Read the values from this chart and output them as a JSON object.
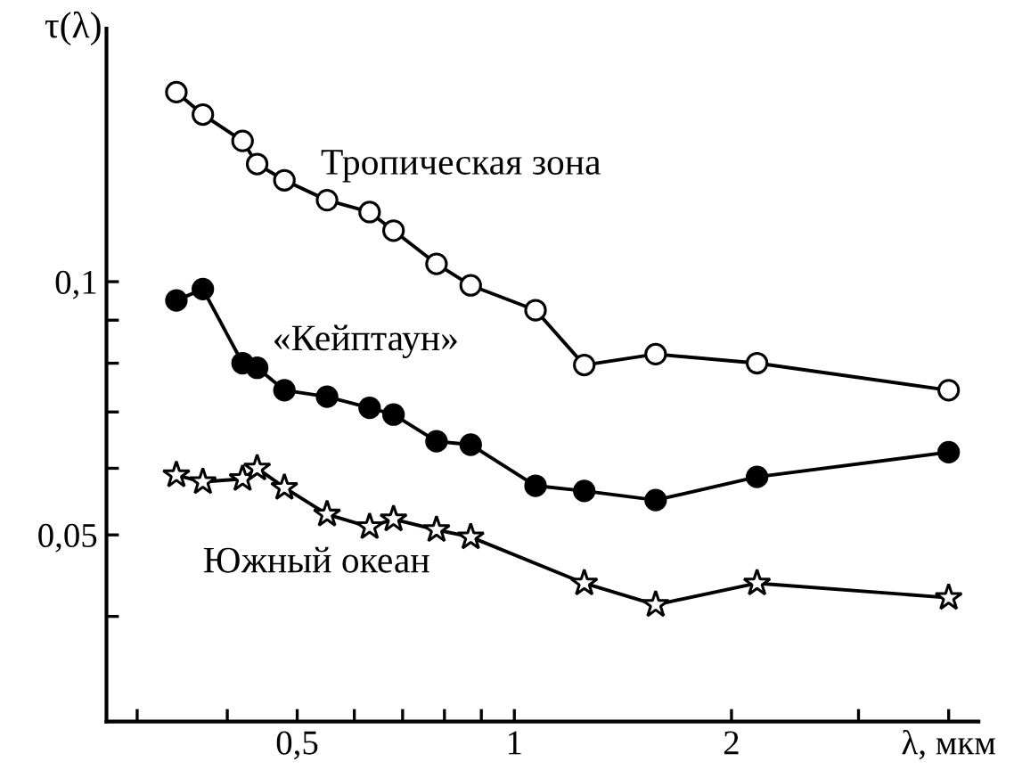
{
  "chart_data": {
    "type": "line",
    "ylabel": "τ(λ)",
    "log": "xy",
    "xlim": [
      0.272,
      4.4
    ],
    "ylim": [
      0.03,
      0.2
    ],
    "xticks": [
      {
        "value": 0.3,
        "label": null
      },
      {
        "value": 0.4,
        "label": null
      },
      {
        "value": 0.5,
        "label": "0,5"
      },
      {
        "value": 0.6,
        "label": null
      },
      {
        "value": 0.7,
        "label": null
      },
      {
        "value": 0.8,
        "label": null
      },
      {
        "value": 0.9,
        "label": null
      },
      {
        "value": 1,
        "label": "1"
      },
      {
        "value": 2,
        "label": "2"
      },
      {
        "value": 3,
        "label": null
      },
      {
        "value": 4,
        "label": "λ, мкм"
      }
    ],
    "yticks": [
      {
        "value": 0.04,
        "label": null
      },
      {
        "value": 0.05,
        "label": "0,05"
      },
      {
        "value": 0.06,
        "label": null
      },
      {
        "value": 0.07,
        "label": null
      },
      {
        "value": 0.08,
        "label": null
      },
      {
        "value": 0.09,
        "label": null
      },
      {
        "value": 0.1,
        "label": "0,1"
      }
    ],
    "grid": false,
    "legend": false,
    "line_style": "solid",
    "series": [
      {
        "name": "Тропическая зона",
        "color": "#ffffff",
        "marker": "circle",
        "x": [
          0.34,
          0.37,
          0.42,
          0.44,
          0.48,
          0.55,
          0.63,
          0.68,
          0.78,
          0.87,
          1.07,
          1.25,
          1.57,
          2.17,
          4.0
        ],
        "values": [
          0.168,
          0.158,
          0.147,
          0.138,
          0.132,
          0.125,
          0.121,
          0.115,
          0.105,
          0.099,
          0.0925,
          0.0796,
          0.082,
          0.08,
          0.0743
        ]
      },
      {
        "name": "«Кейптаун»",
        "color": "#000000",
        "marker": "circle",
        "x": [
          0.34,
          0.37,
          0.42,
          0.44,
          0.48,
          0.55,
          0.63,
          0.68,
          0.78,
          0.87,
          1.07,
          1.25,
          1.57,
          2.17,
          4.0
        ],
        "values": [
          0.095,
          0.098,
          0.08,
          0.079,
          0.0743,
          0.073,
          0.0708,
          0.0695,
          0.0646,
          0.064,
          0.0572,
          0.0564,
          0.055,
          0.0586,
          0.0627
        ]
      },
      {
        "name": "Южный океан",
        "color": "#ffffff",
        "marker": "star",
        "x": [
          0.34,
          0.37,
          0.42,
          0.44,
          0.48,
          0.55,
          0.63,
          0.68,
          0.78,
          0.87,
          1.25,
          1.57,
          2.17,
          4.0
        ],
        "values": [
          0.0589,
          0.0578,
          0.0583,
          0.06,
          0.0569,
          0.0529,
          0.0511,
          0.0522,
          0.0507,
          0.0497,
          0.0438,
          0.0413,
          0.0438,
          0.0421
        ]
      }
    ]
  }
}
